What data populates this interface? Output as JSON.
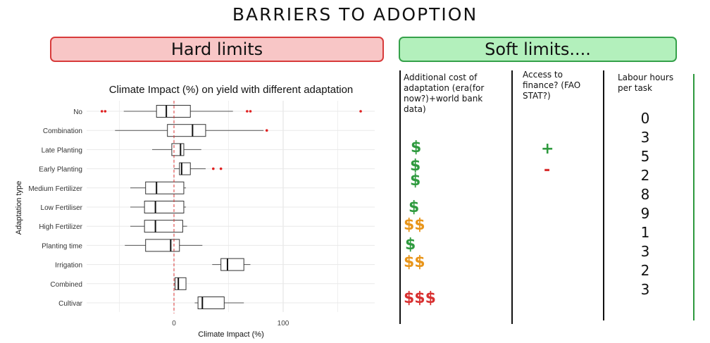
{
  "header": {
    "title": "BARRIERS TO ADOPTION"
  },
  "banners": {
    "hard": "Hard limits",
    "soft": "Soft limits...."
  },
  "chart_data": {
    "type": "boxplot",
    "title": "Climate Impact (%) on yield with different adaptation",
    "xlabel": "Climate Impact (%)",
    "ylabel": "Adaptation type",
    "xticks": [
      0,
      100
    ],
    "xlim": [
      -60,
      185
    ],
    "reference_line": {
      "x": 0,
      "color": "#d83030",
      "style": "dashed"
    },
    "grid": true,
    "categories": [
      "No",
      "Combination",
      "Late Planting",
      "Early Planting",
      "Medium Fertilizer",
      "Low Fertiliser",
      "High Fertilizer",
      "Planting time",
      "Irrigation",
      "Combined",
      "Cultivar"
    ],
    "boxes": [
      {
        "min": -46,
        "q1": -16,
        "median": -7,
        "q3": 15,
        "max": 54,
        "outliers": [
          -66,
          -63,
          67,
          70,
          171
        ]
      },
      {
        "min": -54,
        "q1": -6,
        "median": 17,
        "q3": 29,
        "max": 82,
        "outliers": [
          85
        ]
      },
      {
        "min": -20,
        "q1": -2,
        "median": 6,
        "q3": 9,
        "max": 25,
        "outliers": []
      },
      {
        "min": 0,
        "q1": 5,
        "median": 7,
        "q3": 15,
        "max": 29,
        "outliers": [
          36,
          43
        ]
      },
      {
        "min": -40,
        "q1": -26,
        "median": -16,
        "q3": 9,
        "max": 11,
        "outliers": []
      },
      {
        "min": -40,
        "q1": -27,
        "median": -17,
        "q3": 9,
        "max": 11,
        "outliers": []
      },
      {
        "min": -40,
        "q1": -27,
        "median": -17,
        "q3": 8,
        "max": 12,
        "outliers": []
      },
      {
        "min": -45,
        "q1": -26,
        "median": -3,
        "q3": 5,
        "max": 26,
        "outliers": []
      },
      {
        "min": 35,
        "q1": 43,
        "median": 49,
        "q3": 64,
        "max": 70,
        "outliers": []
      },
      {
        "min": 0,
        "q1": 1,
        "median": 4,
        "q3": 11,
        "max": 11,
        "outliers": []
      },
      {
        "min": 19,
        "q1": 22,
        "median": 26,
        "q3": 46,
        "max": 64,
        "outliers": []
      }
    ]
  },
  "soft_limits": {
    "cost_header": "Additional cost of adaptation (era(for now?)+world bank data)",
    "finance_header": "Access to finance? (FAO STAT?)",
    "labour_header": "Labour hours per task",
    "cost_symbols": [
      "$",
      "$",
      "$",
      "$",
      "$$",
      "$",
      "$$",
      "$$$"
    ],
    "cost_colors": [
      "#2e9a3e",
      "#2e9a3e",
      "#2e9a3e",
      "#2e9a3e",
      "#e8951a",
      "#2e9a3e",
      "#e8951a",
      "#d83030"
    ],
    "finance_symbols": [
      "+",
      "-"
    ],
    "labour_hours": [
      "0",
      "3",
      "5",
      "2",
      "8",
      "9",
      "1",
      "3",
      "2",
      "3"
    ]
  },
  "colors": {
    "hard_bg": "#f8c6c6",
    "hard_border": "#d83b3b",
    "soft_bg": "#b3f0bc",
    "soft_border": "#35a14a"
  }
}
